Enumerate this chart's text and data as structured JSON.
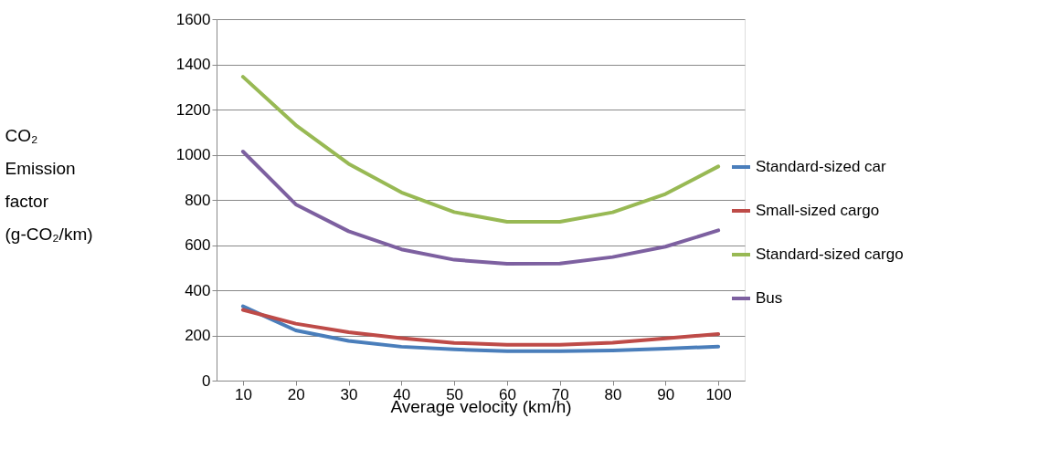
{
  "chart_data": {
    "type": "line",
    "xlabel": "Average velocity (km/h)",
    "ylabel": "CO₂ Emission factor (g-CO₂/km)",
    "categories": [
      "10",
      "20",
      "30",
      "40",
      "50",
      "60",
      "70",
      "80",
      "90",
      "100"
    ],
    "series": [
      {
        "name": "Standard-sized car",
        "color": "#4a7ebb",
        "values": [
          329,
          222,
          176,
          150,
          138,
          130,
          130,
          133,
          141,
          151
        ]
      },
      {
        "name": "Small-sized cargo",
        "color": "#be4b48",
        "values": [
          313,
          252,
          214,
          188,
          167,
          159,
          159,
          168,
          187,
          206
        ]
      },
      {
        "name": "Standard-sized cargo",
        "color": "#98b954",
        "values": [
          1345,
          1131,
          960,
          833,
          746,
          703,
          703,
          745,
          826,
          948
        ]
      },
      {
        "name": "Bus",
        "color": "#7d60a0",
        "values": [
          1014,
          780,
          661,
          581,
          535,
          517,
          518,
          547,
          593,
          665
        ]
      }
    ],
    "ylim": [
      0,
      1600
    ],
    "yticks": [
      0,
      200,
      400,
      600,
      800,
      1000,
      1200,
      1400,
      1600
    ],
    "grid": "y",
    "legend": "right",
    "marker": "none",
    "line_style": "solid"
  }
}
